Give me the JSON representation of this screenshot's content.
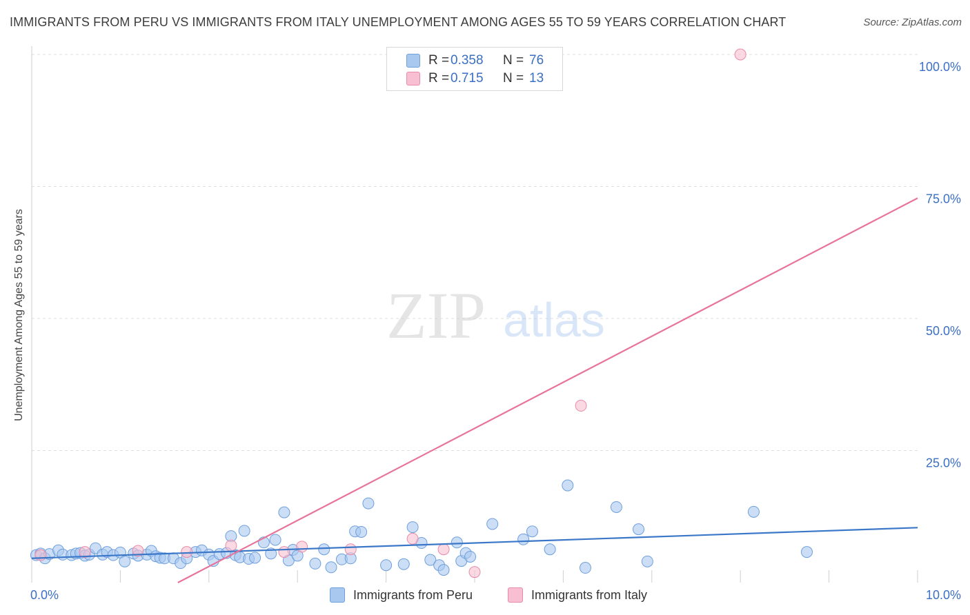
{
  "title": "IMMIGRANTS FROM PERU VS IMMIGRANTS FROM ITALY UNEMPLOYMENT AMONG AGES 55 TO 59 YEARS CORRELATION CHART",
  "source": "Source: ZipAtlas.com",
  "watermark": {
    "zip": "ZIP",
    "atlas": "atlas"
  },
  "legend": {
    "r_label": "R =",
    "n_label": "N =",
    "items": [
      {
        "r": "0.358",
        "n": "76",
        "color": "#a9c8f0"
      },
      {
        "r": "0.715",
        "n": "13",
        "color": "#f7bfd1"
      }
    ]
  },
  "bottom_legend": [
    {
      "label": "Immigrants from Peru",
      "color": "#a9c8f0"
    },
    {
      "label": "Immigrants from Italy",
      "color": "#f7bfd1"
    }
  ],
  "colors": {
    "peru_fill": "#a9c8f0",
    "peru_stroke": "#6e9fdc",
    "peru_line": "#3a77c8",
    "italy_fill": "#f7bfd1",
    "italy_stroke": "#e98aa8",
    "italy_line": "#e8739a",
    "tick_text": "#3a6fc4",
    "grid": "#dedede"
  },
  "chart_data": {
    "type": "scatter",
    "title": "IMMIGRANTS FROM PERU VS IMMIGRANTS FROM ITALY UNEMPLOYMENT AMONG AGES 55 TO 59 YEARS CORRELATION CHART",
    "xlabel": "",
    "ylabel": "Unemployment Among Ages 55 to 59 years",
    "xlim": [
      0,
      10
    ],
    "ylim": [
      0,
      100
    ],
    "x_tick_labels": [
      {
        "value": 0,
        "label": "0.0%"
      },
      {
        "value": 10,
        "label": "10.0%"
      }
    ],
    "y_tick_labels": [
      {
        "value": 25,
        "label": "25.0%"
      },
      {
        "value": 50,
        "label": "50.0%"
      },
      {
        "value": 75,
        "label": "75.0%"
      },
      {
        "value": 100,
        "label": "100.0%"
      }
    ],
    "grid": true,
    "legend_position": "top-center",
    "series": [
      {
        "name": "Immigrants from Peru",
        "r": 0.358,
        "n": 76,
        "trend": {
          "x": [
            0,
            10
          ],
          "y": [
            4.6,
            10.4
          ]
        },
        "points": [
          [
            0.05,
            5.2
          ],
          [
            0.1,
            5.5
          ],
          [
            0.15,
            4.6
          ],
          [
            0.2,
            5.4
          ],
          [
            0.3,
            6.1
          ],
          [
            0.35,
            5.3
          ],
          [
            0.45,
            5.2
          ],
          [
            0.5,
            5.5
          ],
          [
            0.55,
            5.6
          ],
          [
            0.6,
            5.1
          ],
          [
            0.65,
            5.3
          ],
          [
            0.72,
            6.5
          ],
          [
            0.8,
            5.3
          ],
          [
            0.85,
            5.8
          ],
          [
            0.92,
            5.2
          ],
          [
            1.0,
            5.7
          ],
          [
            1.05,
            4.0
          ],
          [
            1.15,
            5.5
          ],
          [
            1.2,
            5.1
          ],
          [
            1.3,
            5.3
          ],
          [
            1.35,
            6.0
          ],
          [
            1.4,
            5.0
          ],
          [
            1.45,
            4.7
          ],
          [
            1.5,
            4.6
          ],
          [
            1.6,
            4.6
          ],
          [
            1.68,
            3.7
          ],
          [
            1.75,
            4.6
          ],
          [
            1.85,
            5.8
          ],
          [
            1.92,
            6.1
          ],
          [
            2.0,
            5.3
          ],
          [
            2.05,
            4.1
          ],
          [
            2.12,
            5.4
          ],
          [
            2.2,
            5.6
          ],
          [
            2.25,
            8.8
          ],
          [
            2.3,
            5.2
          ],
          [
            2.35,
            4.8
          ],
          [
            2.4,
            9.8
          ],
          [
            2.45,
            4.5
          ],
          [
            2.52,
            4.7
          ],
          [
            2.62,
            7.6
          ],
          [
            2.7,
            5.5
          ],
          [
            2.75,
            8.1
          ],
          [
            2.85,
            13.3
          ],
          [
            2.9,
            4.2
          ],
          [
            2.95,
            6.2
          ],
          [
            3.0,
            5.1
          ],
          [
            3.2,
            3.6
          ],
          [
            3.3,
            6.3
          ],
          [
            3.38,
            2.9
          ],
          [
            3.5,
            4.4
          ],
          [
            3.6,
            4.6
          ],
          [
            3.65,
            9.7
          ],
          [
            3.72,
            9.6
          ],
          [
            3.8,
            15.0
          ],
          [
            4.0,
            3.3
          ],
          [
            4.2,
            3.5
          ],
          [
            4.3,
            10.5
          ],
          [
            4.4,
            7.5
          ],
          [
            4.5,
            4.3
          ],
          [
            4.6,
            3.3
          ],
          [
            4.65,
            2.4
          ],
          [
            4.8,
            7.6
          ],
          [
            4.85,
            4.1
          ],
          [
            4.9,
            5.6
          ],
          [
            4.95,
            4.9
          ],
          [
            5.2,
            11.1
          ],
          [
            5.55,
            8.2
          ],
          [
            5.65,
            9.7
          ],
          [
            5.85,
            6.3
          ],
          [
            6.05,
            18.4
          ],
          [
            6.25,
            2.8
          ],
          [
            6.6,
            14.3
          ],
          [
            6.85,
            10.1
          ],
          [
            6.95,
            4.0
          ],
          [
            8.15,
            13.4
          ],
          [
            8.75,
            5.8
          ]
        ]
      },
      {
        "name": "Immigrants from Italy",
        "r": 0.715,
        "n": 13,
        "trend": {
          "x": [
            1.65,
            10
          ],
          "y": [
            0,
            72.8
          ]
        },
        "points": [
          [
            0.1,
            5.2
          ],
          [
            0.6,
            5.8
          ],
          [
            1.2,
            6.0
          ],
          [
            1.75,
            5.8
          ],
          [
            2.25,
            7.0
          ],
          [
            2.85,
            5.8
          ],
          [
            3.05,
            6.8
          ],
          [
            3.6,
            6.3
          ],
          [
            4.3,
            8.3
          ],
          [
            4.65,
            6.3
          ],
          [
            5.0,
            2.0
          ],
          [
            6.2,
            33.5
          ],
          [
            8.0,
            100.0
          ]
        ]
      }
    ]
  }
}
